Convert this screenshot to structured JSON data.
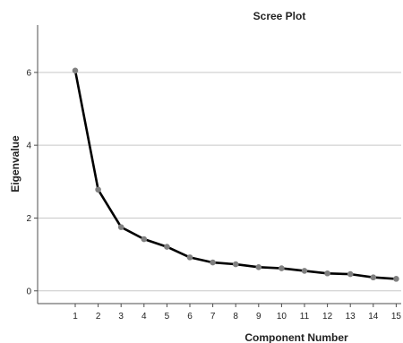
{
  "chart_data": {
    "type": "line",
    "title": "Scree Plot",
    "xlabel": "Component Number",
    "ylabel": "Eigenvalue",
    "x": [
      1,
      2,
      3,
      4,
      5,
      6,
      7,
      8,
      9,
      10,
      11,
      12,
      13,
      14,
      15
    ],
    "x_tick_labels": [
      "1",
      "2",
      "3",
      "4",
      "5",
      "6",
      "7",
      "8",
      "9",
      "10",
      "11",
      "12",
      "13",
      "14",
      "15"
    ],
    "series": [
      {
        "values": [
          6.05,
          2.78,
          1.75,
          1.42,
          1.21,
          0.92,
          0.78,
          0.73,
          0.65,
          0.62,
          0.55,
          0.48,
          0.46,
          0.37,
          0.33
        ]
      }
    ],
    "ylim": [
      -0.35,
      7.3
    ],
    "y_ticks": [
      0,
      2,
      4,
      6
    ],
    "y_tick_labels": [
      "0",
      "2",
      "4",
      "6"
    ],
    "grid": true,
    "colors": {
      "line": "#000000",
      "marker": "#808080",
      "grid": "#c8c8c8",
      "axis": "#4d4d4d"
    }
  }
}
